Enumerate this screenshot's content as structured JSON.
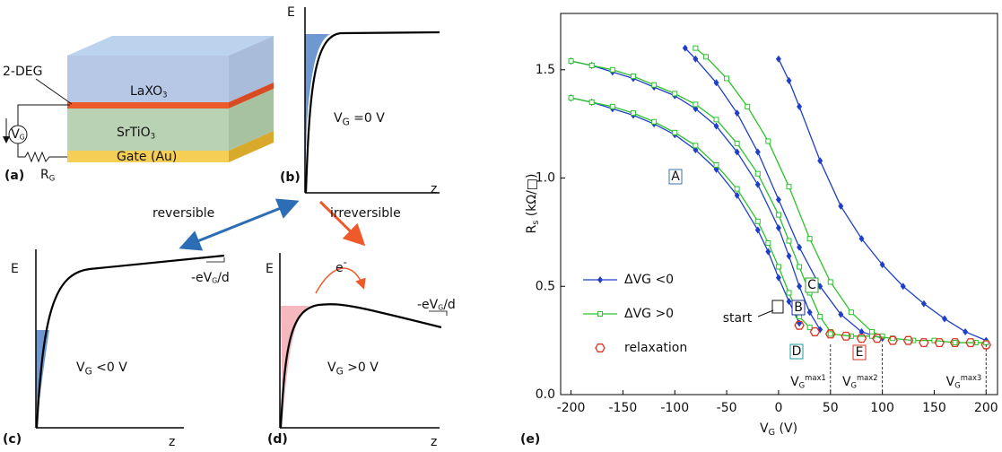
{
  "panel_a": {
    "label": "(a)",
    "deg": "2-DEG",
    "top_layer": {
      "text": "LaXO",
      "sub": "3"
    },
    "substrate": {
      "text": "SrTiO",
      "sub": "3"
    },
    "gate": "Gate (Au)",
    "source": {
      "text": "V",
      "sub": "G"
    },
    "resistor": {
      "text": "R",
      "sub": "G"
    }
  },
  "panel_b": {
    "label": "(b)",
    "energy": "E",
    "depth": "z",
    "condition": {
      "text": "V",
      "sub": "G",
      "rest": " =0 V"
    }
  },
  "panel_c": {
    "label": "(c)",
    "energy": "E",
    "depth": "z",
    "condition": {
      "text": "V",
      "sub": "G",
      "rest": " <0 V"
    },
    "slope": {
      "text": "-eV",
      "sub": "G",
      "rest": "/d"
    }
  },
  "panel_d": {
    "label": "(d)",
    "energy": "E",
    "depth": "z",
    "condition": {
      "text": "V",
      "sub": "G",
      "rest": " >0 V"
    },
    "slope": {
      "text": "-eV",
      "sub": "G",
      "rest": "/d"
    },
    "electron": {
      "text": "e",
      "sup": "-"
    }
  },
  "transitions": {
    "reversible": "reversible",
    "irreversible": "irreversible"
  },
  "chart_data": {
    "type": "line",
    "label": "(e)",
    "xlabel": {
      "text": "V",
      "sub": "G",
      "rest": " (V)"
    },
    "ylabel": {
      "text": "R",
      "sub": "s",
      "rest": " (kΩ/□)"
    },
    "xlim": [
      -210,
      211
    ],
    "ylim": [
      0,
      1.76
    ],
    "xticks": [
      -200,
      -150,
      -100,
      -50,
      0,
      50,
      100,
      150,
      200
    ],
    "yticks": [
      {
        "value": 0,
        "label": "0.0"
      },
      0.5,
      {
        "value": 1,
        "label": "1.0"
      },
      1.5
    ],
    "series": [
      {
        "name": "ΔVG <0",
        "color": "#1f3fc8",
        "marker": "diamond",
        "line": true,
        "x": [
          -200,
          -180,
          -160,
          -140,
          -120,
          -100,
          -80,
          -60,
          -40,
          -20,
          -10,
          0,
          10,
          20
        ],
        "values": [
          1.37,
          1.35,
          1.32,
          1.29,
          1.25,
          1.2,
          1.13,
          1.04,
          0.92,
          0.76,
          0.66,
          0.54,
          0.43,
          0.33
        ]
      },
      {
        "name": "ΔVG >0",
        "color": "#2cc22c",
        "marker": "square",
        "line": true,
        "x": [
          -200,
          -180,
          -160,
          -140,
          -120,
          -100,
          -80,
          -60,
          -40,
          -20,
          -10,
          0,
          10,
          20,
          30
        ],
        "values": [
          1.37,
          1.35,
          1.33,
          1.3,
          1.26,
          1.21,
          1.15,
          1.06,
          0.95,
          0.8,
          0.7,
          0.59,
          0.47,
          0.36,
          0.31
        ]
      },
      {
        "name": "ΔVG <0",
        "color": "#1f3fc8",
        "marker": "diamond",
        "line": true,
        "x": [
          -200,
          -180,
          -160,
          -140,
          -120,
          -100,
          -80,
          -60,
          -40,
          -20,
          0,
          10,
          20,
          30,
          40
        ],
        "values": [
          1.54,
          1.52,
          1.49,
          1.46,
          1.42,
          1.38,
          1.32,
          1.24,
          1.12,
          0.97,
          0.77,
          0.64,
          0.5,
          0.38,
          0.3
        ]
      },
      {
        "name": "ΔVG >0",
        "color": "#2cc22c",
        "marker": "square",
        "line": true,
        "x": [
          -200,
          -180,
          -160,
          -140,
          -120,
          -100,
          -80,
          -60,
          -40,
          -20,
          0,
          10,
          20,
          30,
          40,
          50
        ],
        "values": [
          1.54,
          1.52,
          1.5,
          1.47,
          1.43,
          1.39,
          1.34,
          1.27,
          1.16,
          1.02,
          0.83,
          0.71,
          0.59,
          0.47,
          0.36,
          0.29
        ]
      },
      {
        "name": "ΔVG <0",
        "color": "#1f3fc8",
        "marker": "diamond",
        "line": true,
        "x": [
          -90,
          -80,
          -60,
          -40,
          -20,
          0,
          20,
          40,
          60,
          80,
          100
        ],
        "values": [
          1.6,
          1.55,
          1.44,
          1.3,
          1.12,
          0.9,
          0.68,
          0.5,
          0.37,
          0.29,
          0.26
        ]
      },
      {
        "name": "ΔVG >0",
        "color": "#2cc22c",
        "marker": "square",
        "line": true,
        "x": [
          -80,
          -70,
          -50,
          -30,
          -10,
          10,
          30,
          50,
          70,
          90,
          100
        ],
        "values": [
          1.6,
          1.56,
          1.46,
          1.33,
          1.17,
          0.96,
          0.72,
          0.52,
          0.38,
          0.29,
          0.27
        ]
      },
      {
        "name": "ΔVG <0",
        "color": "#1f3fc8",
        "marker": "diamond",
        "line": true,
        "x": [
          0,
          10,
          20,
          40,
          60,
          80,
          100,
          120,
          140,
          160,
          180,
          200
        ],
        "values": [
          1.55,
          1.45,
          1.33,
          1.08,
          0.87,
          0.72,
          0.6,
          0.5,
          0.42,
          0.35,
          0.29,
          0.25
        ]
      },
      {
        "name": "ΔVG >0",
        "color": "#2cc22c",
        "marker": "square",
        "line": true,
        "x": [
          50,
          70,
          90,
          110,
          130,
          150,
          170,
          190,
          200
        ],
        "values": [
          0.28,
          0.27,
          0.27,
          0.26,
          0.25,
          0.25,
          0.24,
          0.24,
          0.24
        ]
      },
      {
        "name": "relaxation",
        "color": "#dd3322",
        "marker": "hexagon",
        "line": false,
        "x": [
          20,
          35,
          50,
          65,
          80,
          95,
          110,
          125,
          140,
          155,
          170,
          185,
          200
        ],
        "values": [
          0.32,
          0.29,
          0.28,
          0.27,
          0.26,
          0.26,
          0.25,
          0.25,
          0.24,
          0.24,
          0.24,
          0.24,
          0.23
        ]
      }
    ],
    "annotations": [
      {
        "text": "A",
        "color": "#3a6fb0"
      },
      {
        "text": "B",
        "color": "#1f2f90"
      },
      {
        "text": "C",
        "color": "#2ca02c"
      },
      {
        "text": "D",
        "color": "#1a9a9a"
      },
      {
        "text": "E",
        "color": "#dd3322"
      },
      {
        "text": "start",
        "color": "#111111"
      }
    ],
    "vmax": [
      {
        "value": 50,
        "label": {
          "text": "V",
          "sub": "G",
          "sup": "max1"
        }
      },
      {
        "value": 100,
        "label": {
          "text": "V",
          "sub": "G",
          "sup": "max2"
        }
      },
      {
        "value": 200,
        "label": {
          "text": "V",
          "sub": "G",
          "sup": "max3"
        }
      }
    ]
  }
}
